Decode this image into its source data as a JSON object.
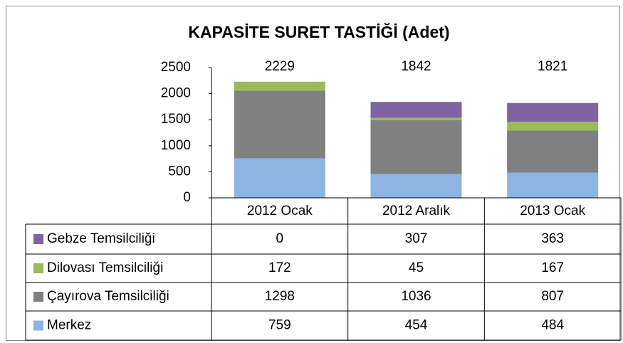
{
  "chart_data": {
    "type": "stacked_bar",
    "title": "KAPASİTE SURET TASTİĞİ (Adet)",
    "categories": [
      "2012 Ocak",
      "2012 Aralık",
      "2013 Ocak"
    ],
    "series": [
      {
        "name": "Merkez",
        "color": "#8db4e2",
        "values": [
          759,
          454,
          484
        ]
      },
      {
        "name": "Çayırova Temsilciliği",
        "color": "#808080",
        "values": [
          1298,
          1036,
          807
        ]
      },
      {
        "name": "Dilovası Temsilciliği",
        "color": "#9bbb59",
        "values": [
          172,
          45,
          167
        ]
      },
      {
        "name": "Gebze Temsilciliği",
        "color": "#8064a2",
        "values": [
          0,
          307,
          363
        ]
      }
    ],
    "totals": [
      2229,
      1842,
      1821
    ],
    "ylim": [
      0,
      2500
    ],
    "yticks": [
      0,
      500,
      1000,
      1500,
      2000,
      2500
    ]
  }
}
